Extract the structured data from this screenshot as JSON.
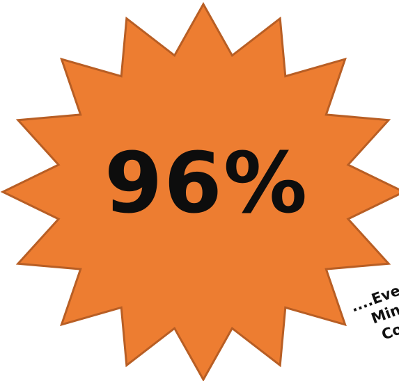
{
  "badge": {
    "value_text": "96%",
    "fill_color": "#ED7D31",
    "stroke_color": "#B85E24",
    "points": 16
  },
  "side_note": {
    "line1": "....Eve",
    "line2": "Min",
    "line3": "Co"
  }
}
